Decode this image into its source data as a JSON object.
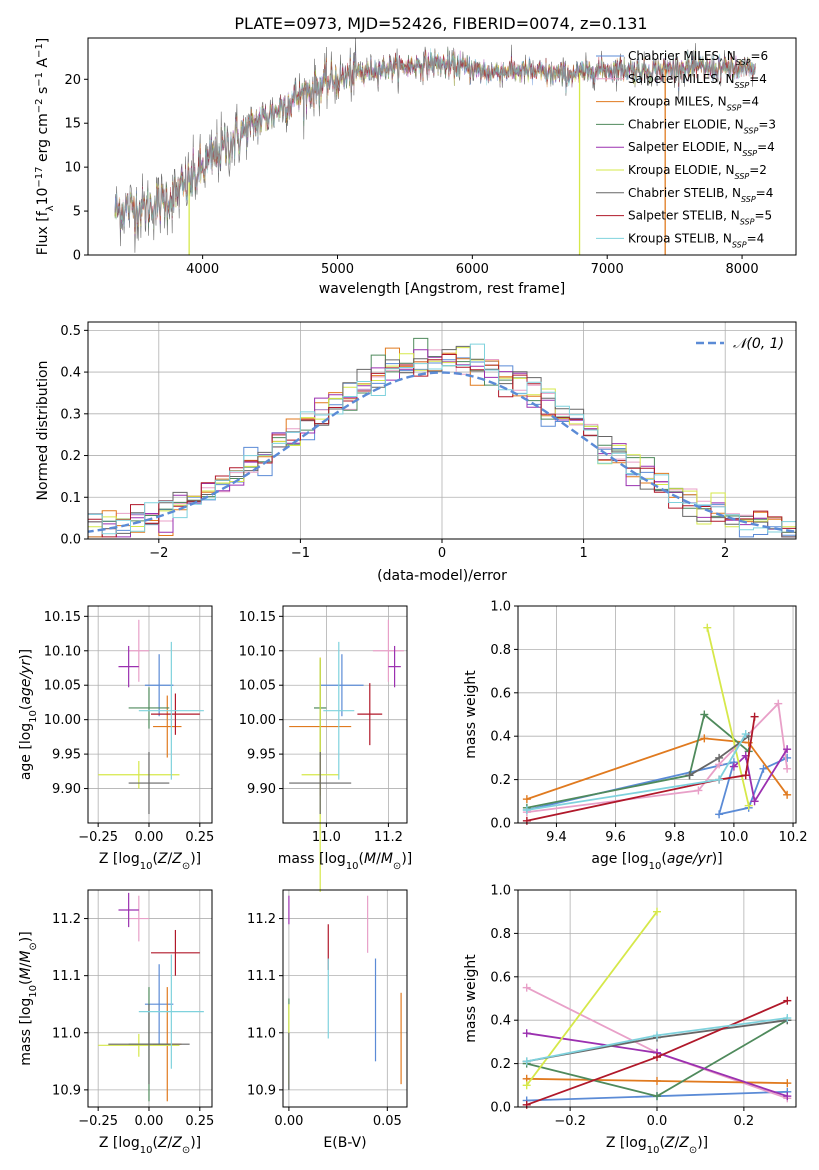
{
  "colors": {
    "chabrier_miles": "#5b8bd6",
    "salpeter_miles": "#e8a0c8",
    "kroupa_miles": "#e07a1f",
    "chabrier_elodie": "#4f8a5c",
    "salpeter_elodie": "#9b30b0",
    "kroupa_elodie": "#d6e84a",
    "chabrier_stelib": "#666666",
    "salpeter_stelib": "#b0182a",
    "kroupa_stelib": "#7fd2dd"
  },
  "chart_data": [
    {
      "type": "line",
      "title": "PLATE=0973, MJD=52426, FIBERID=0074, z=0.131",
      "xlabel": "wavelength [Angstrom, rest frame]",
      "ylabel": "Flux [f_λ10^-17 erg cm^-2 s^-1 A^-1]",
      "xlim": [
        3150,
        8400
      ],
      "ylim": [
        0,
        24.7
      ],
      "xticks": [
        4000,
        5000,
        6000,
        7000,
        8000
      ],
      "yticks": [
        0,
        5,
        10,
        15,
        20
      ],
      "grid": false,
      "legend_position": "top-right",
      "continuum_x": [
        3350,
        3500,
        3550,
        3700,
        3800,
        3950,
        4100,
        4300,
        4500,
        4700,
        4900,
        5100,
        5300,
        5500,
        5700,
        5900,
        6100,
        6300,
        6500,
        6700,
        6900,
        7100,
        7300,
        7500,
        7700,
        7900,
        8100
      ],
      "continuum_y": [
        5.0,
        5.5,
        5.2,
        6.0,
        6.8,
        9.0,
        11.5,
        14.0,
        16.0,
        18.0,
        19.5,
        20.5,
        21.2,
        21.5,
        21.8,
        21.5,
        20.8,
        21.0,
        20.8,
        20.5,
        21.0,
        21.2,
        21.0,
        21.2,
        21.3,
        21.2,
        21.0
      ],
      "series": [
        {
          "name": "Chabrier MILES, N_SSP=6",
          "color_key": "chabrier_miles"
        },
        {
          "name": "Salpeter MILES, N_SSP=4",
          "color_key": "salpeter_miles"
        },
        {
          "name": "Kroupa MILES, N_SSP=4",
          "color_key": "kroupa_miles"
        },
        {
          "name": "Chabrier ELODIE, N_SSP=3",
          "color_key": "chabrier_elodie"
        },
        {
          "name": "Salpeter ELODIE, N_SSP=4",
          "color_key": "salpeter_elodie"
        },
        {
          "name": "Kroupa ELODIE, N_SSP=2",
          "color_key": "kroupa_elodie"
        },
        {
          "name": "Chabrier STELIB, N_SSP=4",
          "color_key": "chabrier_stelib"
        },
        {
          "name": "Salpeter STELIB, N_SSP=5",
          "color_key": "salpeter_stelib"
        },
        {
          "name": "Kroupa STELIB, N_SSP=4",
          "color_key": "kroupa_stelib"
        }
      ]
    },
    {
      "type": "histogram",
      "xlabel": "(data-model)/error",
      "ylabel": "Normed distribution",
      "xlim": [
        -2.5,
        2.5
      ],
      "ylim": [
        0,
        0.52
      ],
      "xticks": [
        -2,
        -1,
        0,
        1,
        2
      ],
      "yticks": [
        0.0,
        0.1,
        0.2,
        0.3,
        0.4,
        0.5
      ],
      "grid": true,
      "legend": "N(0,1)",
      "legend_position": "top-right",
      "bin_width": 0.1
    },
    {
      "type": "scatter",
      "xlabel": "Z [log10(Z/Z⊙)]",
      "ylabel": "age [log10(age/yr)]",
      "xlim": [
        -0.3,
        0.31
      ],
      "ylim": [
        9.85,
        10.165
      ],
      "xticks": [
        -0.25,
        0.0,
        0.25
      ],
      "yticks": [
        9.9,
        9.95,
        10.0,
        10.05,
        10.1,
        10.15
      ],
      "grid": true,
      "points": [
        {
          "series": "chabrier_miles",
          "x": 0.05,
          "xerr": 0.07,
          "y": 10.05,
          "yerr": 0.045
        },
        {
          "series": "salpeter_miles",
          "x": -0.05,
          "xerr": 0.05,
          "y": 10.1,
          "yerr": 0.045
        },
        {
          "series": "kroupa_miles",
          "x": 0.09,
          "xerr": 0.07,
          "y": 9.99,
          "yerr": 0.045
        },
        {
          "series": "chabrier_elodie",
          "x": 0.0,
          "xerr": 0.1,
          "y": 10.017,
          "yerr": 0.03
        },
        {
          "series": "salpeter_elodie",
          "x": -0.1,
          "xerr": 0.05,
          "y": 10.077,
          "yerr": 0.03
        },
        {
          "series": "kroupa_elodie",
          "x": -0.05,
          "xerr": 0.2,
          "y": 9.92,
          "yerr": 0.02
        },
        {
          "series": "chabrier_stelib",
          "x": 0.0,
          "xerr": 0.1,
          "y": 9.908,
          "yerr": 0.045
        },
        {
          "series": "salpeter_stelib",
          "x": 0.13,
          "xerr": 0.12,
          "y": 10.008,
          "yerr": 0.03
        },
        {
          "series": "kroupa_stelib",
          "x": 0.11,
          "xerr": 0.16,
          "y": 10.013,
          "yerr": 0.1
        }
      ]
    },
    {
      "type": "scatter",
      "xlabel": "mass [log10(M/M⊙)]",
      "ylabel": "",
      "xlim": [
        10.86,
        11.26
      ],
      "ylim": [
        9.85,
        10.165
      ],
      "xticks": [
        11.0,
        11.2
      ],
      "yticks": [
        9.9,
        9.95,
        10.0,
        10.05,
        10.1,
        10.15
      ],
      "grid": true,
      "points": [
        {
          "series": "chabrier_miles",
          "x": 11.05,
          "xerr": 0.07,
          "y": 10.05,
          "yerr": 0.045
        },
        {
          "series": "salpeter_miles",
          "x": 11.2,
          "xerr": 0.05,
          "y": 10.1,
          "yerr": 0.045
        },
        {
          "series": "kroupa_miles",
          "x": 10.98,
          "xerr": 0.1,
          "y": 9.99,
          "yerr": 0.1
        },
        {
          "series": "chabrier_elodie",
          "x": 10.98,
          "xerr": 0.02,
          "y": 10.017,
          "yerr": 0.07
        },
        {
          "series": "salpeter_elodie",
          "x": 11.22,
          "xerr": 0.02,
          "y": 10.077,
          "yerr": 0.03
        },
        {
          "series": "kroupa_elodie",
          "x": 10.98,
          "xerr": 0.06,
          "y": 9.92,
          "yerr": 0.17
        },
        {
          "series": "chabrier_stelib",
          "x": 10.98,
          "xerr": 0.1,
          "y": 9.908,
          "yerr": 0.045
        },
        {
          "series": "salpeter_stelib",
          "x": 11.14,
          "xerr": 0.04,
          "y": 10.008,
          "yerr": 0.045
        },
        {
          "series": "kroupa_stelib",
          "x": 11.04,
          "xerr": 0.05,
          "y": 10.013,
          "yerr": 0.1
        }
      ]
    },
    {
      "type": "line",
      "xlabel": "age [log10(age/yr)]",
      "ylabel": "mass weight",
      "xlim": [
        9.27,
        10.21
      ],
      "ylim": [
        0,
        1.0
      ],
      "xticks": [
        9.4,
        9.6,
        9.8,
        10.0,
        10.2
      ],
      "yticks": [
        0.0,
        0.2,
        0.4,
        0.6,
        0.8,
        1.0
      ],
      "grid": true,
      "series": [
        {
          "series": "chabrier_miles",
          "x": [
            9.3,
            10.0,
            9.95,
            10.05,
            10.1,
            10.18
          ],
          "y": [
            0.06,
            0.28,
            0.04,
            0.07,
            0.25,
            0.3
          ]
        },
        {
          "series": "kroupa_miles",
          "x": [
            9.3,
            9.9,
            10.05,
            10.18
          ],
          "y": [
            0.11,
            0.39,
            0.37,
            0.13
          ]
        },
        {
          "series": "salpeter_miles",
          "x": [
            9.3,
            9.88,
            9.95,
            10.15,
            10.18
          ],
          "y": [
            0.05,
            0.15,
            0.27,
            0.55,
            0.25
          ]
        },
        {
          "series": "chabrier_elodie",
          "x": [
            9.3,
            9.85,
            9.9,
            10.05
          ],
          "y": [
            0.07,
            0.22,
            0.5,
            0.33
          ]
        },
        {
          "series": "salpeter_elodie",
          "x": [
            10.0,
            10.04,
            10.07,
            10.18
          ],
          "y": [
            0.26,
            0.31,
            0.1,
            0.34
          ]
        },
        {
          "series": "kroupa_elodie",
          "x": [
            9.91,
            10.05
          ],
          "y": [
            0.9,
            0.08
          ]
        },
        {
          "series": "chabrier_stelib",
          "x": [
            9.85,
            9.95,
            10.05
          ],
          "y": [
            0.22,
            0.3,
            0.4
          ]
        },
        {
          "series": "salpeter_stelib",
          "x": [
            9.3,
            9.95,
            10.04,
            10.07
          ],
          "y": [
            0.01,
            0.2,
            0.22,
            0.49
          ]
        },
        {
          "series": "kroupa_stelib",
          "x": [
            9.3,
            9.95,
            10.04
          ],
          "y": [
            0.06,
            0.2,
            0.41
          ]
        }
      ]
    },
    {
      "type": "scatter",
      "xlabel": "Z [log10(Z/Z⊙)]",
      "ylabel": "mass [log10(M/M⊙)]",
      "xlim": [
        -0.3,
        0.31
      ],
      "ylim": [
        10.87,
        11.25
      ],
      "xticks": [
        -0.25,
        0.0,
        0.25
      ],
      "yticks": [
        10.9,
        11.0,
        11.1,
        11.2
      ],
      "grid": true,
      "points": [
        {
          "series": "chabrier_miles",
          "x": 0.05,
          "xerr": 0.07,
          "y": 11.05,
          "yerr": 0.07
        },
        {
          "series": "salpeter_miles",
          "x": -0.05,
          "xerr": 0.05,
          "y": 11.2,
          "yerr": 0.04
        },
        {
          "series": "kroupa_miles",
          "x": 0.09,
          "xerr": 0.07,
          "y": 10.98,
          "yerr": 0.1
        },
        {
          "series": "chabrier_elodie",
          "x": 0.0,
          "xerr": 0.1,
          "y": 10.98,
          "yerr": 0.1
        },
        {
          "series": "salpeter_elodie",
          "x": -0.1,
          "xerr": 0.05,
          "y": 11.215,
          "yerr": 0.03
        },
        {
          "series": "kroupa_elodie",
          "x": -0.05,
          "xerr": 0.2,
          "y": 10.978,
          "yerr": 0.02
        },
        {
          "series": "chabrier_stelib",
          "x": 0.0,
          "xerr": 0.2,
          "y": 10.98,
          "yerr": 0.07
        },
        {
          "series": "salpeter_stelib",
          "x": 0.13,
          "xerr": 0.12,
          "y": 11.14,
          "yerr": 0.04
        },
        {
          "series": "kroupa_stelib",
          "x": 0.11,
          "xerr": 0.16,
          "y": 11.037,
          "yerr": 0.1
        }
      ]
    },
    {
      "type": "scatter",
      "xlabel": "E(B-V)",
      "ylabel": "",
      "xlim": [
        -0.003,
        0.06
      ],
      "ylim": [
        10.87,
        11.25
      ],
      "xticks": [
        0.0,
        0.05
      ],
      "yticks": [
        10.9,
        11.0,
        11.1,
        11.2
      ],
      "grid": true,
      "points": [
        {
          "series": "chabrier_miles",
          "x": 0.044,
          "xerr": 0.0,
          "y": 11.04,
          "yerr": 0.09
        },
        {
          "series": "salpeter_miles",
          "x": 0.04,
          "xerr": 0.0,
          "y": 11.19,
          "yerr": 0.05
        },
        {
          "series": "kroupa_miles",
          "x": 0.057,
          "xerr": 0.0,
          "y": 10.99,
          "yerr": 0.08
        },
        {
          "series": "chabrier_elodie",
          "x": 0.0,
          "xerr": 0.0,
          "y": 10.98,
          "yerr": 0.08
        },
        {
          "series": "salpeter_elodie",
          "x": 0.0,
          "xerr": 0.0,
          "y": 11.215,
          "yerr": 0.025
        },
        {
          "series": "kroupa_elodie",
          "x": 0.0,
          "xerr": 0.0,
          "y": 10.98,
          "yerr": 0.07
        },
        {
          "series": "chabrier_stelib",
          "x": 0.0,
          "xerr": 0.0,
          "y": 10.95,
          "yerr": 0.05
        },
        {
          "series": "salpeter_stelib",
          "x": 0.02,
          "xerr": 0.0,
          "y": 11.15,
          "yerr": 0.04
        },
        {
          "series": "kroupa_stelib",
          "x": 0.02,
          "xerr": 0.0,
          "y": 11.06,
          "yerr": 0.07
        }
      ]
    },
    {
      "type": "line",
      "xlabel": "Z [log10(Z/Z⊙)]",
      "ylabel": "mass weight",
      "xlim": [
        -0.32,
        0.32
      ],
      "ylim": [
        0,
        1.0
      ],
      "xticks": [
        -0.2,
        0.0,
        0.2
      ],
      "yticks": [
        0.0,
        0.2,
        0.4,
        0.6,
        0.8,
        1.0
      ],
      "grid": true,
      "series": [
        {
          "series": "chabrier_miles",
          "x": [
            -0.3,
            0.0,
            0.3
          ],
          "y": [
            0.03,
            0.05,
            0.07
          ]
        },
        {
          "series": "salpeter_miles",
          "x": [
            -0.3,
            0.0,
            0.3
          ],
          "y": [
            0.55,
            0.25,
            0.04
          ]
        },
        {
          "series": "kroupa_miles",
          "x": [
            -0.3,
            0.0,
            0.3
          ],
          "y": [
            0.13,
            0.12,
            0.11
          ]
        },
        {
          "series": "chabrier_elodie",
          "x": [
            -0.3,
            0.0,
            0.3
          ],
          "y": [
            0.2,
            0.05,
            0.4
          ]
        },
        {
          "series": "salpeter_elodie",
          "x": [
            -0.3,
            0.0,
            0.3
          ],
          "y": [
            0.34,
            0.25,
            0.05
          ]
        },
        {
          "series": "kroupa_elodie",
          "x": [
            -0.3,
            0.0
          ],
          "y": [
            0.1,
            0.9
          ]
        },
        {
          "series": "chabrier_stelib",
          "x": [
            -0.3,
            0.0,
            0.3
          ],
          "y": [
            0.21,
            0.32,
            0.4
          ]
        },
        {
          "series": "salpeter_stelib",
          "x": [
            -0.3,
            0.0,
            0.3
          ],
          "y": [
            0.01,
            0.23,
            0.49
          ]
        },
        {
          "series": "kroupa_stelib",
          "x": [
            -0.3,
            0.0,
            0.3
          ],
          "y": [
            0.21,
            0.33,
            0.41
          ]
        }
      ]
    }
  ]
}
